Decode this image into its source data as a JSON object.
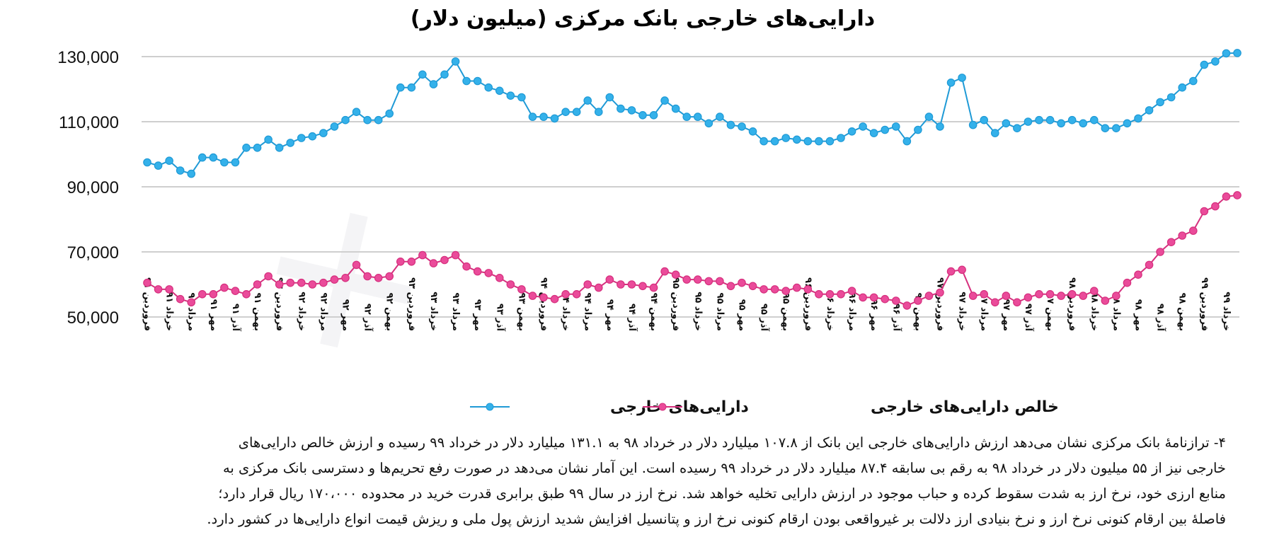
{
  "chart_data": {
    "type": "line",
    "title": "دارایی‌های خارجی بانک مرکزی (میلیون دلار)",
    "ylim": [
      50000,
      130000
    ],
    "yticks": [
      "130,000",
      "110,000",
      "90,000",
      "70,000",
      "50,000"
    ],
    "ytick_values": [
      130000,
      110000,
      90000,
      70000,
      50000
    ],
    "grid": true,
    "legend_position": "bottom",
    "x_labels": [
      "فروردین ۹۱",
      "خرداد ۹۱",
      "مرداد ۹۱",
      "مهر ۹۱",
      "آذر ۹۱",
      "بهمن ۹۱",
      "فروردین ۹۲",
      "خرداد ۹۲",
      "مرداد ۹۲",
      "مهر ۹۲",
      "آذر ۹۲",
      "بهمن ۹۲",
      "فروردین ۹۳",
      "خرداد ۹۳",
      "مرداد ۹۳",
      "مهر ۹۳",
      "آذر ۹۳",
      "بهمن ۹۳",
      "فروردین ۹۴",
      "خرداد ۹۴",
      "مرداد ۹۴",
      "مهر ۹۴",
      "آذر ۹۴",
      "بهمن ۹۴",
      "فروردین ۹۵",
      "خرداد ۹۵",
      "مرداد ۹۵",
      "مهر ۹۵",
      "آذر ۹۵",
      "بهمن ۹۵",
      "فروردین ۹۶",
      "خرداد ۹۶",
      "مرداد ۹۶",
      "مهر ۹۶",
      "آذر ۹۶",
      "بهمن ۹۶",
      "فروردین ۹۷",
      "خرداد ۹۷",
      "مرداد ۹۷",
      "مهر ۹۷",
      "آذر ۹۷",
      "بهمن ۹۷",
      "فروردین ۹۸",
      "خرداد ۹۸",
      "مرداد ۹۸",
      "مهر ۹۸",
      "آذر ۹۸",
      "بهمن ۹۸",
      "فروردین ۹۹",
      "خرداد ۹۹"
    ],
    "series": [
      {
        "name": "دارایی‌های خارجی",
        "color": "#1f9ad6",
        "marker_fill": "#34b1ea",
        "values": [
          97500,
          96500,
          98000,
          95000,
          94000,
          99000,
          99000,
          97500,
          97500,
          102000,
          102000,
          104500,
          102000,
          103500,
          105000,
          105500,
          106500,
          108500,
          110500,
          113000,
          110500,
          110500,
          112500,
          120500,
          120500,
          124500,
          121500,
          124500,
          128500,
          122500,
          122500,
          120500,
          119500,
          118000,
          117500,
          111500,
          111500,
          111000,
          113000,
          113000,
          116500,
          113000,
          117500,
          114000,
          113500,
          112000,
          112000,
          116500,
          114000,
          111500,
          111500,
          109500,
          111500,
          109000,
          108500,
          107000,
          104000,
          104000,
          105000,
          104500,
          104000,
          104000,
          104000,
          105000,
          107000,
          108500,
          106500,
          107500,
          108500,
          104000,
          107500,
          111500,
          108500,
          122000,
          123500,
          109000,
          110500,
          106500,
          109500,
          108000,
          110000,
          110500,
          110500,
          109500,
          110500,
          109500,
          110500,
          108000,
          108000,
          109500,
          111000,
          113500,
          116000,
          117500,
          120500,
          122500,
          127500,
          128500,
          131000,
          131100
        ]
      },
      {
        "name": "خالص دارایی‌های خارجی",
        "color": "#d6307e",
        "marker_fill": "#ea4b9a",
        "values": [
          60500,
          58500,
          58500,
          55500,
          54500,
          57000,
          57000,
          59000,
          58000,
          57000,
          60000,
          62500,
          60000,
          60500,
          60500,
          60000,
          60500,
          61500,
          62000,
          66000,
          62500,
          62000,
          62500,
          67000,
          67000,
          69000,
          66500,
          67500,
          69000,
          65500,
          64000,
          63500,
          62000,
          60000,
          58500,
          56500,
          56000,
          55500,
          57000,
          57000,
          60000,
          59000,
          61500,
          60000,
          60000,
          59500,
          59000,
          64000,
          63000,
          61500,
          61500,
          61000,
          61000,
          59500,
          60500,
          59500,
          58500,
          58500,
          58000,
          59000,
          58500,
          57000,
          57000,
          57000,
          58000,
          56000,
          56000,
          55500,
          55000,
          53500,
          55000,
          56500,
          57500,
          64000,
          64500,
          56500,
          57000,
          54500,
          56500,
          54500,
          56000,
          57000,
          57000,
          56500,
          57000,
          56500,
          58000,
          55000,
          56500,
          60500,
          63000,
          66000,
          70000,
          73000,
          75000,
          76500,
          82500,
          84000,
          87000,
          87400
        ]
      }
    ]
  },
  "paragraph_lines": [
    "۴- ترازنامهٔ بانک مرکزی نشان می‌دهد ارزش دارایی‌های خارجی این بانک از ۱۰۷.۸ میلیارد دلار در خرداد ۹۸ به ۱۳۱.۱ میلیارد دلار در خرداد ۹۹ رسیده و ارزش خالص دارایی‌های",
    "خارجی نیز از ۵۵ میلیون دلار در خرداد ۹۸ به رقم بی سابقه ۸۷.۴ میلیارد دلار در خرداد ۹۹ رسیده است. این آمار نشان می‌دهد در صورت رفع تحریم‌ها و دسترسی بانک مرکزی به",
    "منابع ارزی خود، نرخ ارز به شدت سقوط کرده و حباب موجود در ارزش دارایی تخلیه خواهد شد. نرخ ارز در سال ۹۹ طبق برابری قدرت خرید در محدوده ۱۷۰،۰۰۰ ریال قرار دارد؛",
    "فاصلهٔ بین ارقام کنونی نرخ ارز و نرخ بنیادی ارز دلالت بر غیرواقعی بودن ارقام کنونی نرخ ارز و پتانسیل افزایش شدید ارزش پول ملی و ریزش قیمت انواع دارایی‌ها در کشور دارد."
  ]
}
